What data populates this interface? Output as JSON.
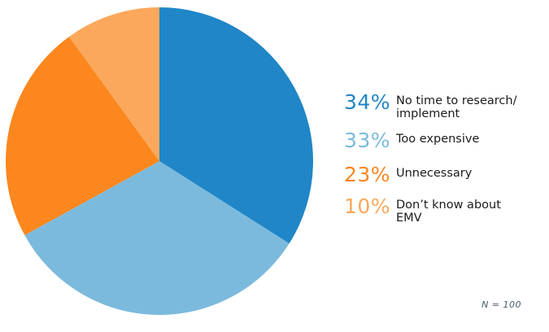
{
  "chart_data": {
    "type": "pie",
    "start_angle_deg": 0,
    "direction": "clockwise",
    "legend_position": "right",
    "note": "N = 100",
    "slices": [
      {
        "label": "No time to research/\nimplement",
        "pct_label": "34%",
        "value": 34,
        "color": "#2086C7"
      },
      {
        "label": "Too expensive",
        "pct_label": "33%",
        "value": 33,
        "color": "#7CBADD"
      },
      {
        "label": "Unnecessary",
        "pct_label": "23%",
        "value": 23,
        "color": "#FB871E"
      },
      {
        "label": "Don’t know about\nEMV",
        "pct_label": "10%",
        "value": 10,
        "color": "#FBA85C"
      }
    ]
  }
}
